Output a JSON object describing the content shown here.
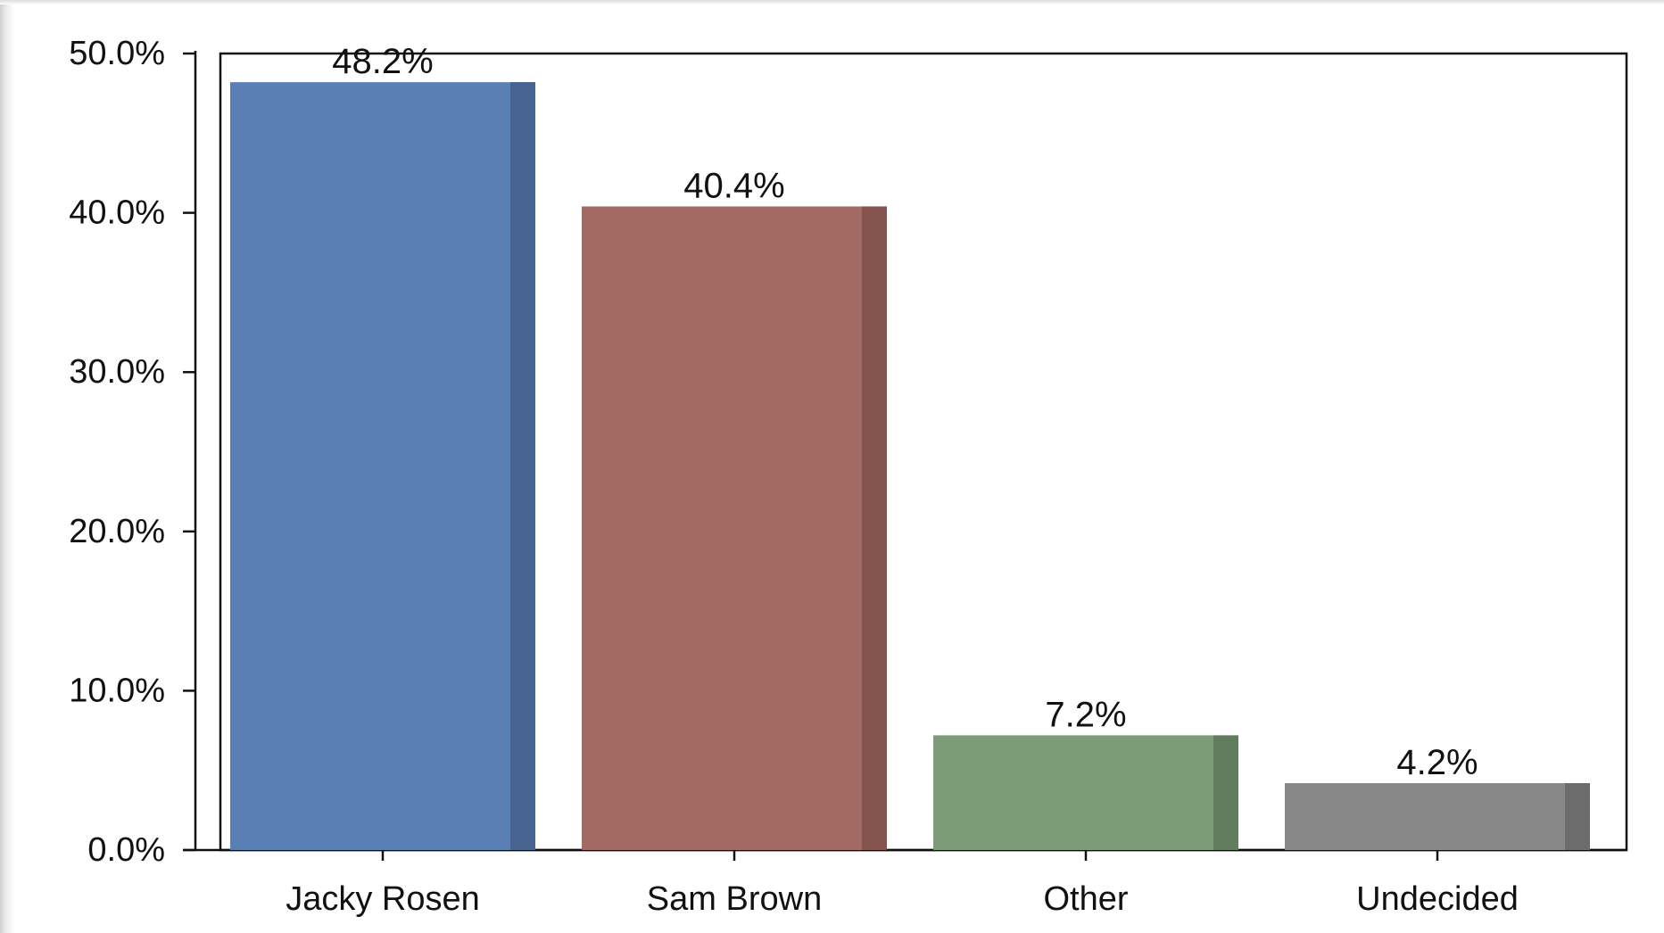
{
  "chart_data": {
    "type": "bar",
    "categories": [
      "Jacky Rosen",
      "Sam Brown",
      "Other",
      "Undecided"
    ],
    "values": [
      48.2,
      40.4,
      7.2,
      4.2
    ],
    "value_labels": [
      "48.2%",
      "40.4%",
      "7.2%",
      "4.2%"
    ],
    "colors": [
      "#5a7fb5",
      "#a26a63",
      "#7c9c77",
      "#888888"
    ],
    "shade_colors": [
      "#46648f",
      "#86544f",
      "#627c5e",
      "#6c6c6c"
    ],
    "ylim": [
      0,
      50
    ],
    "yticks": [
      0,
      10,
      20,
      30,
      40,
      50
    ],
    "ytick_labels": [
      "0.0%",
      "10.0%",
      "20.0%",
      "30.0%",
      "40.0%",
      "50.0%"
    ],
    "title": "",
    "xlabel": "",
    "ylabel": "",
    "grid": false,
    "legend": "none"
  }
}
